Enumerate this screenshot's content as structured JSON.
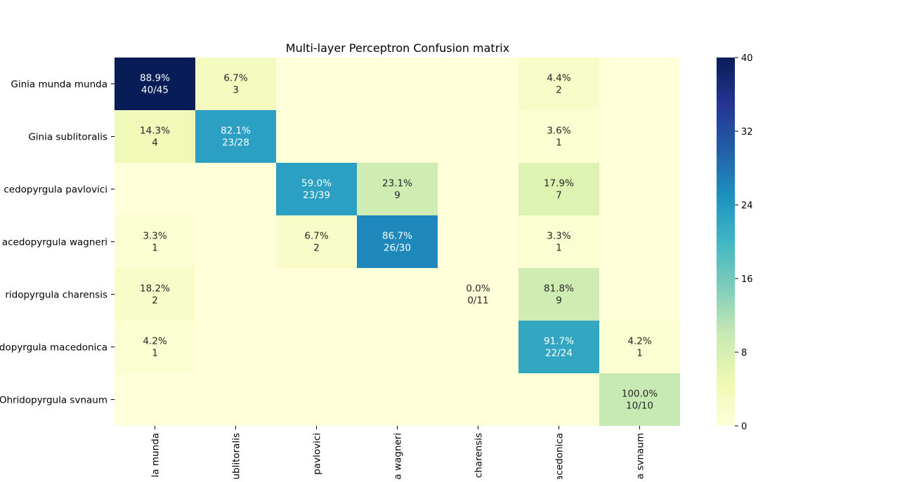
{
  "chart_data": {
    "type": "heatmap",
    "title": "Multi-layer Perceptron Confusion matrix",
    "row_labels": [
      "Ginia munda munda",
      "Ginia sublitoralis",
      "Macedopyrgula pavlovici",
      "Macedopyrgula wagneri",
      "Ohridopyrgula charensis",
      "Ohridopyrgula macedonica",
      "Ohridopyrgula svnaum"
    ],
    "row_labels_visible": [
      "Ginia munda munda",
      "Ginia sublitoralis",
      "cedopyrgula pavlovici",
      "acedopyrgula wagneri",
      "ridopyrgula charensis",
      "dopyrgula macedonica",
      "Ohridopyrgula svnaum"
    ],
    "col_labels_visible": [
      "la munda",
      "ublitoralis",
      "pavlovici",
      "a wagneri",
      "charensis",
      "acedonica",
      "a svnaum"
    ],
    "counts": [
      [
        40,
        3,
        0,
        0,
        0,
        2,
        0
      ],
      [
        4,
        23,
        0,
        0,
        0,
        1,
        0
      ],
      [
        0,
        0,
        23,
        9,
        0,
        7,
        0
      ],
      [
        1,
        0,
        2,
        26,
        0,
        1,
        0
      ],
      [
        2,
        0,
        0,
        0,
        0,
        9,
        0
      ],
      [
        1,
        0,
        0,
        0,
        0,
        22,
        1
      ],
      [
        0,
        0,
        0,
        0,
        0,
        0,
        10
      ]
    ],
    "annotations": [
      [
        [
          "88.9%",
          "40/45"
        ],
        [
          "6.7%",
          "3"
        ],
        null,
        null,
        null,
        [
          "4.4%",
          "2"
        ],
        null
      ],
      [
        [
          "14.3%",
          "4"
        ],
        [
          "82.1%",
          "23/28"
        ],
        null,
        null,
        null,
        [
          "3.6%",
          "1"
        ],
        null
      ],
      [
        null,
        null,
        [
          "59.0%",
          "23/39"
        ],
        [
          "23.1%",
          "9"
        ],
        null,
        [
          "17.9%",
          "7"
        ],
        null
      ],
      [
        [
          "3.3%",
          "1"
        ],
        null,
        [
          "6.7%",
          "2"
        ],
        [
          "86.7%",
          "26/30"
        ],
        null,
        [
          "3.3%",
          "1"
        ],
        null
      ],
      [
        [
          "18.2%",
          "2"
        ],
        null,
        null,
        null,
        [
          "0.0%",
          "0/11"
        ],
        [
          "81.8%",
          "9"
        ],
        null
      ],
      [
        [
          "4.2%",
          "1"
        ],
        null,
        null,
        null,
        null,
        [
          "91.7%",
          "22/24"
        ],
        [
          "4.2%",
          "1"
        ]
      ],
      [
        null,
        null,
        null,
        null,
        null,
        null,
        [
          "100.0%",
          "10/10"
        ]
      ]
    ],
    "colorbar": {
      "min": 0,
      "max": 40,
      "ticks": [
        "0",
        "8",
        "16",
        "24",
        "32",
        "40"
      ]
    },
    "colormap": "YlGnBu"
  }
}
